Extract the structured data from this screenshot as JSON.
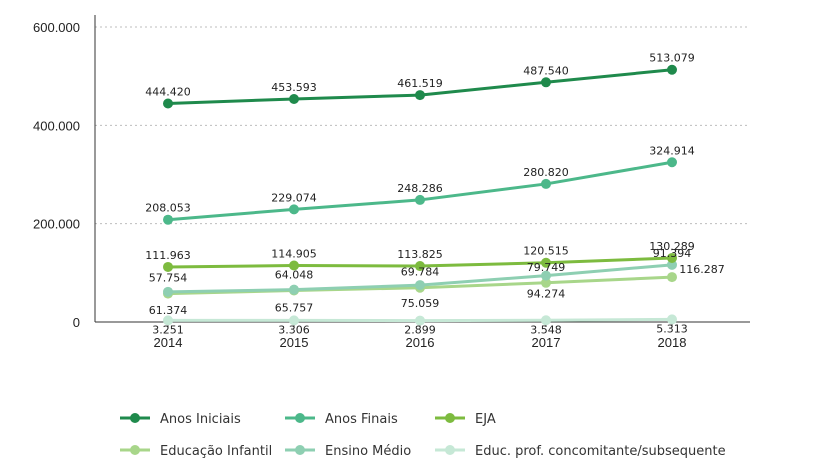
{
  "chart_data": {
    "type": "line",
    "title": "",
    "xlabel": "",
    "ylabel": "",
    "categories": [
      "2014",
      "2015",
      "2016",
      "2017",
      "2018"
    ],
    "ylim": [
      0,
      600000
    ],
    "yticks": [
      0,
      200000,
      400000,
      600000
    ],
    "ytick_labels": [
      "0",
      "200.000",
      "400.000",
      "600.000"
    ],
    "grid": true,
    "legend_position": "bottom",
    "series": [
      {
        "name": "Anos Iniciais",
        "color": "#1f8a4c",
        "values": [
          444420,
          453593,
          461519,
          487540,
          513079
        ],
        "labels": [
          "444.420",
          "453.593",
          "461.519",
          "487.540",
          "513.079"
        ]
      },
      {
        "name": "Anos Finais",
        "color": "#4cb88a",
        "values": [
          208053,
          229074,
          248286,
          280820,
          324914
        ],
        "labels": [
          "208.053",
          "229.074",
          "248.286",
          "280.820",
          "324.914"
        ]
      },
      {
        "name": "EJA",
        "color": "#7dbb3f",
        "values": [
          111963,
          114905,
          113825,
          120515,
          130289
        ],
        "labels": [
          "111.963",
          "114.905",
          "113.825",
          "120.515",
          "130.289"
        ]
      },
      {
        "name": "Educação Infantil",
        "color": "#a8d68a",
        "values": [
          57754,
          64048,
          69784,
          79749,
          91394
        ],
        "labels": [
          "57.754",
          "64.048",
          "69.784",
          "79.749",
          "91.394"
        ]
      },
      {
        "name": "Ensino Médio",
        "color": "#8ecfb2",
        "values": [
          61374,
          65757,
          75059,
          94274,
          116287
        ],
        "labels": [
          "61.374",
          "65.757",
          "75.059",
          "94.274",
          "116.287"
        ]
      },
      {
        "name": "Educ. prof. concomitante/subsequente",
        "color": "#c6e8d6",
        "values": [
          3251,
          3306,
          2899,
          3548,
          5313
        ],
        "labels": [
          "3.251",
          "3.306",
          "2.899",
          "3.548",
          "5.313"
        ]
      }
    ]
  }
}
